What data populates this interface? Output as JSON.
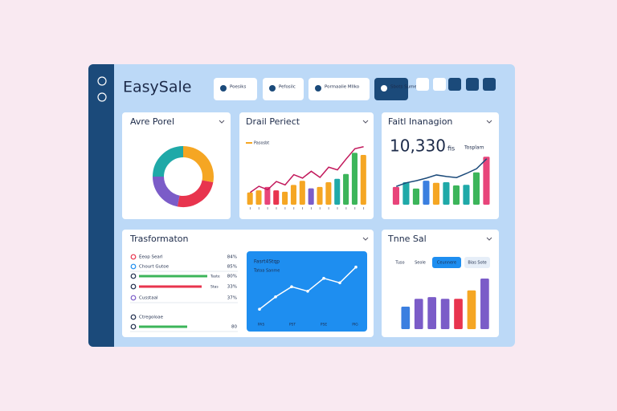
{
  "header": {
    "title": "EasySale",
    "buttons": [
      "Poesiks",
      "Pefosilc",
      "Pormaalie Mllko",
      "Sbots Sume"
    ]
  },
  "donut_card": {
    "title": "Avre Porel",
    "values": [
      28,
      25,
      22,
      25
    ],
    "colors": [
      "#f5a623",
      "#e8344e",
      "#7b5cc8",
      "#1fa9a8"
    ]
  },
  "trend_card": {
    "title": "Drail Periect",
    "legend": "Pasosbt",
    "ylim": [
      0,
      100
    ],
    "bars": [
      18,
      21,
      26,
      21,
      19,
      29,
      35,
      24,
      26,
      33,
      38,
      45,
      76,
      73
    ],
    "bar_colors": [
      "#f5a623",
      "#f5a623",
      "#e8447a",
      "#e8344e",
      "#f5a623",
      "#f5a623",
      "#f5a623",
      "#7b5cc8",
      "#f5a623",
      "#f5a623",
      "#1fa9a8",
      "#3cb55a",
      "#3cb55a",
      "#f5a623"
    ],
    "line": [
      18,
      27,
      22,
      34,
      29,
      44,
      39,
      49,
      40,
      55,
      51,
      67,
      82,
      85
    ],
    "line_color": "#c2185b"
  },
  "total_card": {
    "title": "Faitl Inanagion",
    "value": "10,330",
    "unit": "fis",
    "note": "Tosplam",
    "ylim": [
      0,
      100
    ],
    "bars": [
      34,
      43,
      31,
      46,
      42,
      43,
      37,
      38,
      62,
      92
    ],
    "bar_colors": [
      "#e8447a",
      "#1fa9a8",
      "#3cb55a",
      "#3b7fe0",
      "#f5a623",
      "#1fa9a8",
      "#3cb55a",
      "#1fa9a8",
      "#3cb55a",
      "#e8447a"
    ],
    "line": [
      35,
      42,
      46,
      51,
      57,
      54,
      52,
      60,
      69,
      88
    ],
    "line_color": "#1b4a7a"
  },
  "list_card": {
    "title": "Trasformaton",
    "rows": [
      {
        "label": "Eeop Searl",
        "pct": "84%"
      },
      {
        "label": "Chourt Gutoe",
        "pct": "85%"
      },
      {
        "label": "",
        "bar": 85,
        "bar_color": "#3cb55a",
        "tag": "Taste",
        "pct": "80%"
      },
      {
        "label": "",
        "bar": 78,
        "bar_color": "#e8344e",
        "tag": "Stas",
        "pct": "33%"
      },
      {
        "label": "Cusstaal",
        "pct": "37%"
      },
      {
        "label": "Ctregoloae",
        "pct": ""
      },
      {
        "label": "",
        "bar": 60,
        "bar_color": "#3cb55a",
        "tag": "",
        "pct": "80"
      }
    ],
    "panel": {
      "title": "Fasrt4Stqp",
      "subtitle": "Tatoa Sanme",
      "ylim": [
        0,
        100
      ],
      "line": [
        14,
        36,
        54,
        46,
        69,
        61,
        89
      ],
      "labels": [
        "PAS",
        "PST",
        "PSE",
        "PIG"
      ]
    }
  },
  "sales_card": {
    "title": "Tnne Sal",
    "tabs": [
      "Tuso",
      "Seole",
      "Ceunnere",
      "Bias Sote"
    ],
    "ylim": [
      0,
      100
    ],
    "bars": [
      40,
      54,
      57,
      54,
      54,
      69,
      90
    ],
    "bar_colors": [
      "#3b7fe0",
      "#7b5cc8",
      "#7b5cc8",
      "#7b5cc8",
      "#e8344e",
      "#f5a623",
      "#7b5cc8"
    ]
  }
}
